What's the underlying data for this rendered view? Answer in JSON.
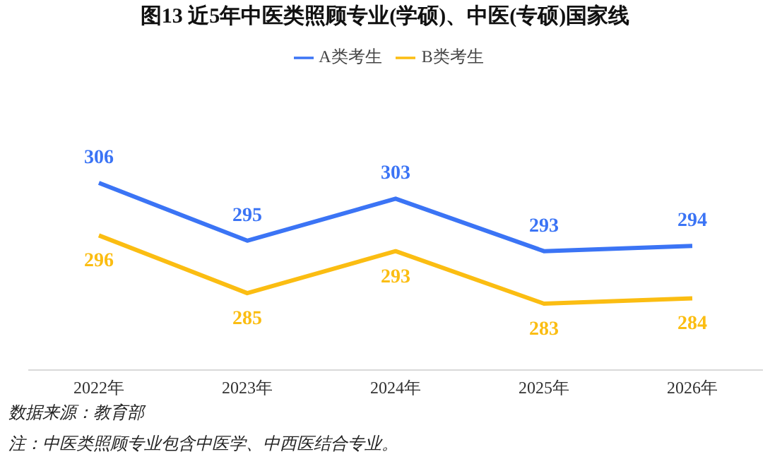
{
  "chart_data": {
    "type": "line",
    "title": "图13  近5年中医类照顾专业(学硕)、中医(专硕)国家线",
    "categories": [
      "2022年",
      "2023年",
      "2024年",
      "2025年",
      "2026年"
    ],
    "series": [
      {
        "name": "A类考生",
        "color": "#3b74f5",
        "values": [
          306,
          295,
          303,
          293,
          294
        ]
      },
      {
        "name": "B类考生",
        "color": "#fbbd12",
        "values": [
          296,
          285,
          293,
          283,
          284
        ]
      }
    ],
    "tick_labels": "x",
    "data_labels": true,
    "grid": false,
    "legend": "top",
    "marker": "none",
    "line_style": "solid",
    "annotations": [
      "数据来源：教育部",
      "注：中医类照顾专业包含中医学、中西医结合专业。"
    ]
  }
}
